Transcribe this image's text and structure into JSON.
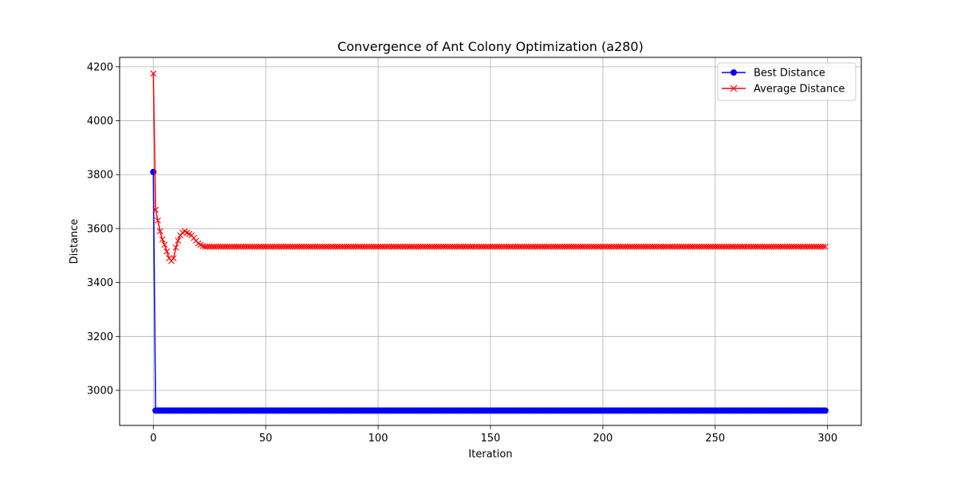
{
  "chart_data": {
    "type": "line",
    "title": "Convergence of Ant Colony Optimization (a280)",
    "xlabel": "Iteration",
    "ylabel": "Distance",
    "xlim": [
      -15,
      315
    ],
    "ylim": [
      2870,
      4235
    ],
    "x_ticks": [
      0,
      50,
      100,
      150,
      200,
      250,
      300
    ],
    "y_ticks": [
      3000,
      3200,
      3400,
      3600,
      3800,
      4000,
      4200
    ],
    "grid": true,
    "legend_position": "top-right",
    "x": {
      "start": 0,
      "end": 299,
      "step": 1
    },
    "series": [
      {
        "name": "Best Distance",
        "color": "#0000ff",
        "marker": "circle",
        "values_head": [
          3810,
          2925
        ],
        "steady_value": 2925
      },
      {
        "name": "Average Distance",
        "color": "#ff0000",
        "marker": "x",
        "values_head": [
          4175,
          3670,
          3630,
          3590,
          3560,
          3540,
          3515,
          3490,
          3480,
          3490,
          3530,
          3555,
          3575,
          3585,
          3590,
          3585,
          3580,
          3575,
          3565,
          3555,
          3545,
          3540,
          3535
        ],
        "steady_value": 3533
      }
    ]
  }
}
